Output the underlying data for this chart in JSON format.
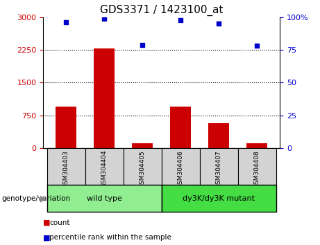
{
  "title": "GDS3371 / 1423100_at",
  "samples": [
    "GSM304403",
    "GSM304404",
    "GSM304405",
    "GSM304406",
    "GSM304407",
    "GSM304408"
  ],
  "counts": [
    950,
    2280,
    120,
    960,
    580,
    110
  ],
  "percentile_ranks": [
    96,
    99,
    79,
    98,
    95,
    78
  ],
  "ylim_left": [
    0,
    3000
  ],
  "ylim_right": [
    0,
    100
  ],
  "yticks_left": [
    0,
    750,
    1500,
    2250,
    3000
  ],
  "yticks_right": [
    0,
    25,
    50,
    75,
    100
  ],
  "bar_color": "#cc0000",
  "dot_color": "#0000cc",
  "groups": [
    {
      "label": "wild type",
      "indices": [
        0,
        1,
        2
      ],
      "color": "#90ee90"
    },
    {
      "label": "dy3K/dy3K mutant",
      "indices": [
        3,
        4,
        5
      ],
      "color": "#44dd44"
    }
  ],
  "group_label": "genotype/variation",
  "legend_count_label": "count",
  "legend_pct_label": "percentile rank within the sample",
  "left_tick_color": "#cc0000",
  "right_tick_color": "#0000cc",
  "sample_box_color": "#d3d3d3"
}
